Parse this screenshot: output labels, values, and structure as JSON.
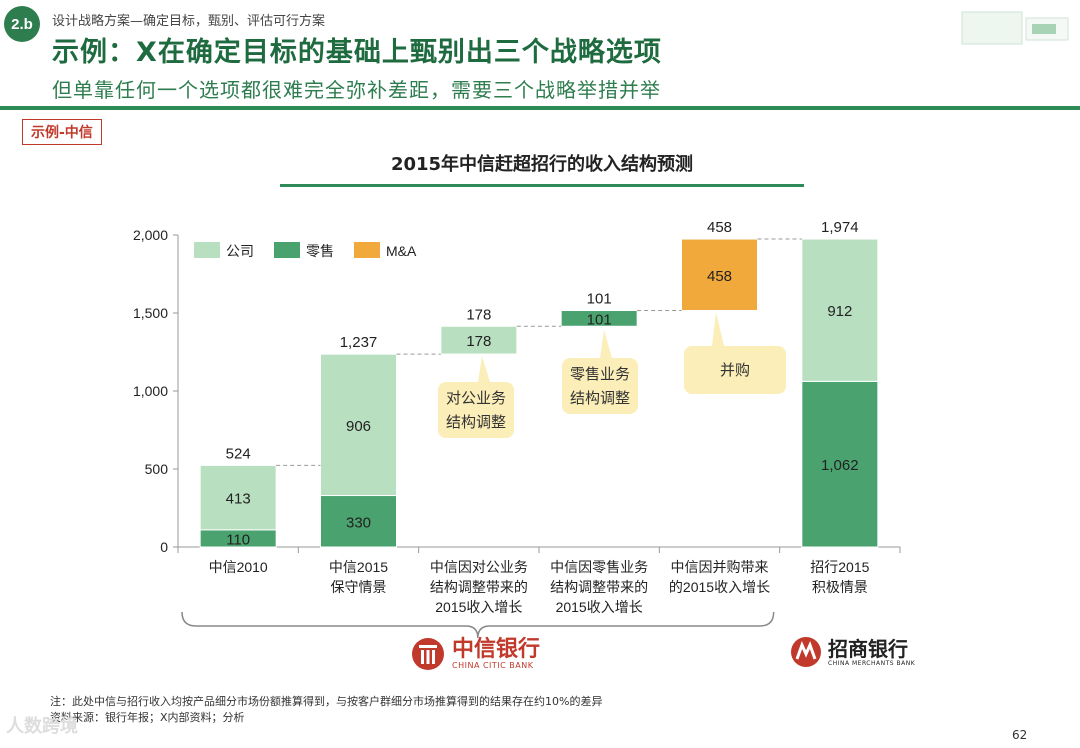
{
  "header": {
    "badge": "2.b",
    "breadcrumb": "设计战略方案—确定目标，甄别、评估可行方案",
    "title": "示例：X在确定目标的基础上甄别出三个战略选项",
    "subtitle": "但单靠任何一个选项都很难完全弥补差距，需要三个战略举措并举"
  },
  "example_tag": "示例-中信",
  "callouts": [
    "对公业务\n结构调整",
    "零售业务\n结构调整",
    "并购"
  ],
  "logos": {
    "citic": {
      "name": "中信银行",
      "sub": "CHINA CITIC BANK"
    },
    "cmb": {
      "name": "招商银行",
      "sub": "CHINA MERCHANTS BANK"
    }
  },
  "footnotes": [
    "注：此处中信与招行收入均按产品细分市场份额推算得到，与按客户群细分市场推算得到的结果存在约10%的差异",
    "资料来源：银行年报；X内部资料；分析"
  ],
  "page_number": "62",
  "watermark": "人数跨境",
  "colors": {
    "corporate": "#b8dfc0",
    "retail": "#4aa36f",
    "ma": "#f2a93b",
    "accent": "#2e8b57"
  },
  "chart_data": {
    "type": "bar",
    "subtype": "waterfall",
    "title": "2015年中信赶超招行的收入结构预测",
    "ylim": [
      0,
      2000
    ],
    "yticks": [
      0,
      500,
      1000,
      1500,
      2000
    ],
    "ytick_labels": [
      "0",
      "500",
      "1,000",
      "1,500",
      "2,000"
    ],
    "legend": [
      {
        "key": "corporate",
        "label": "公司"
      },
      {
        "key": "retail",
        "label": "零售"
      },
      {
        "key": "ma",
        "label": "M&A"
      }
    ],
    "categories": [
      "中信2010",
      "中信2015\n保守情景",
      "中信因对公业务\n结构调整带来的\n2015收入增长",
      "中信因零售业务\n结构调整带来的\n2015收入增长",
      "中信因并购带来\n的2015收入增长",
      "招行2015\n积极情景"
    ],
    "bars": [
      {
        "base": 0,
        "total_label": "524",
        "segments": [
          {
            "series": "retail",
            "value": 110,
            "label": "110"
          },
          {
            "series": "corporate",
            "value": 413,
            "label": "413"
          }
        ]
      },
      {
        "base": 0,
        "total_label": "1,237",
        "segments": [
          {
            "series": "retail",
            "value": 330,
            "label": "330"
          },
          {
            "series": "corporate",
            "value": 906,
            "label": "906"
          }
        ]
      },
      {
        "base": 1237,
        "total_label": "178",
        "segments": [
          {
            "series": "corporate",
            "value": 178,
            "label": "178"
          }
        ]
      },
      {
        "base": 1415,
        "total_label": "101",
        "segments": [
          {
            "series": "retail",
            "value": 101,
            "label": "101"
          }
        ]
      },
      {
        "base": 1516,
        "total_label": "458",
        "segments": [
          {
            "series": "ma",
            "value": 458,
            "label": "458"
          }
        ]
      },
      {
        "base": 0,
        "total_label": "1,974",
        "segments": [
          {
            "series": "retail",
            "value": 1062,
            "label": "1,062"
          },
          {
            "series": "corporate",
            "value": 912,
            "label": "912"
          }
        ]
      }
    ]
  }
}
